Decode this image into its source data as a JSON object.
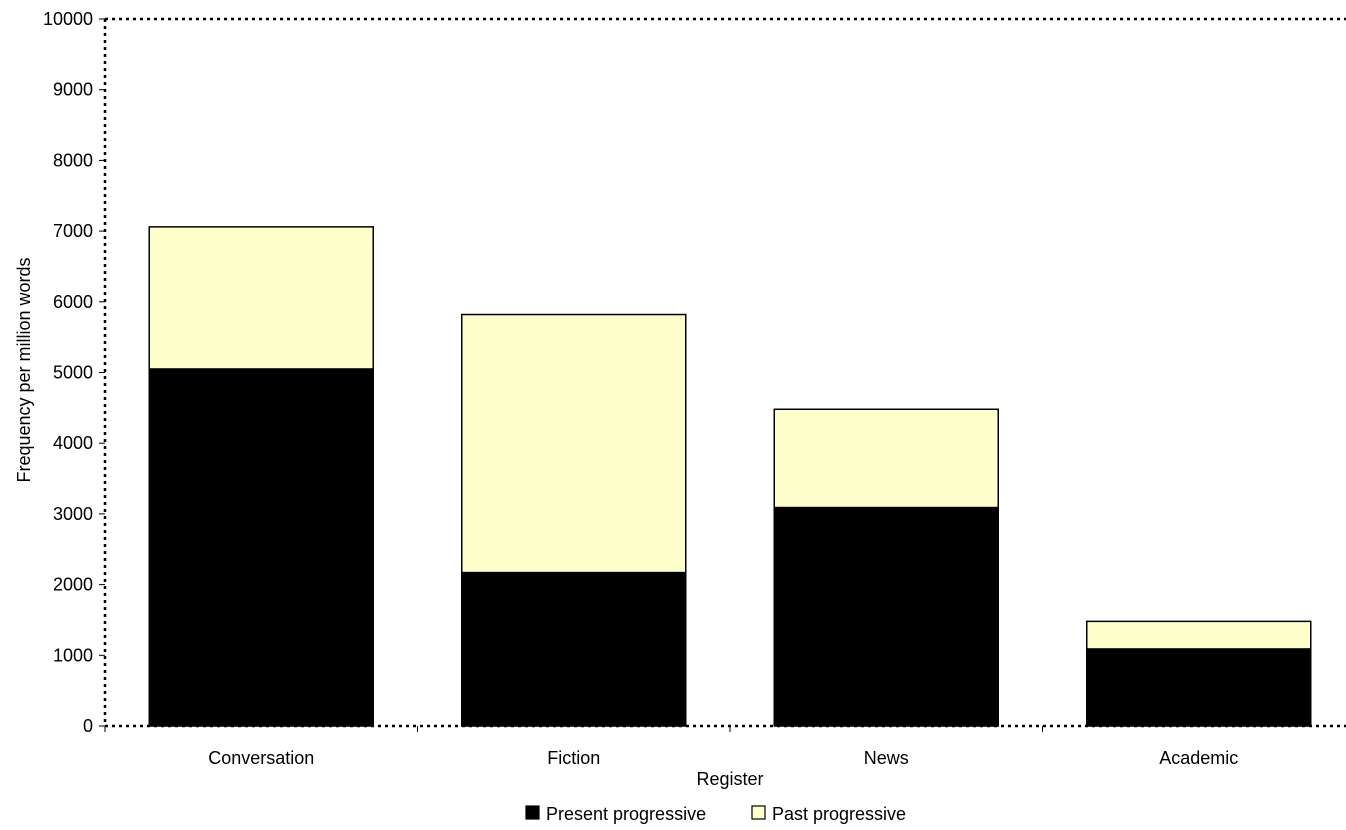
{
  "chart_data": {
    "type": "bar",
    "stacked": true,
    "title": "",
    "xlabel": "Register",
    "ylabel": "Frequency per million words",
    "categories": [
      "Conversation",
      "Fiction",
      "News",
      "Academic"
    ],
    "series": [
      {
        "name": "Present progressive",
        "values": [
          5050,
          2170,
          3090,
          1090
        ],
        "color": "#000000"
      },
      {
        "name": "Past progressive",
        "values": [
          2010,
          3650,
          1390,
          390
        ],
        "color": "#ffffcc"
      }
    ],
    "ylim": [
      0,
      10000
    ],
    "yticks": [
      "0",
      "1000",
      "2000",
      "3000",
      "4000",
      "5000",
      "6000",
      "7000",
      "8000",
      "9000",
      "10000"
    ],
    "grid": false,
    "legend_position": "bottom"
  }
}
